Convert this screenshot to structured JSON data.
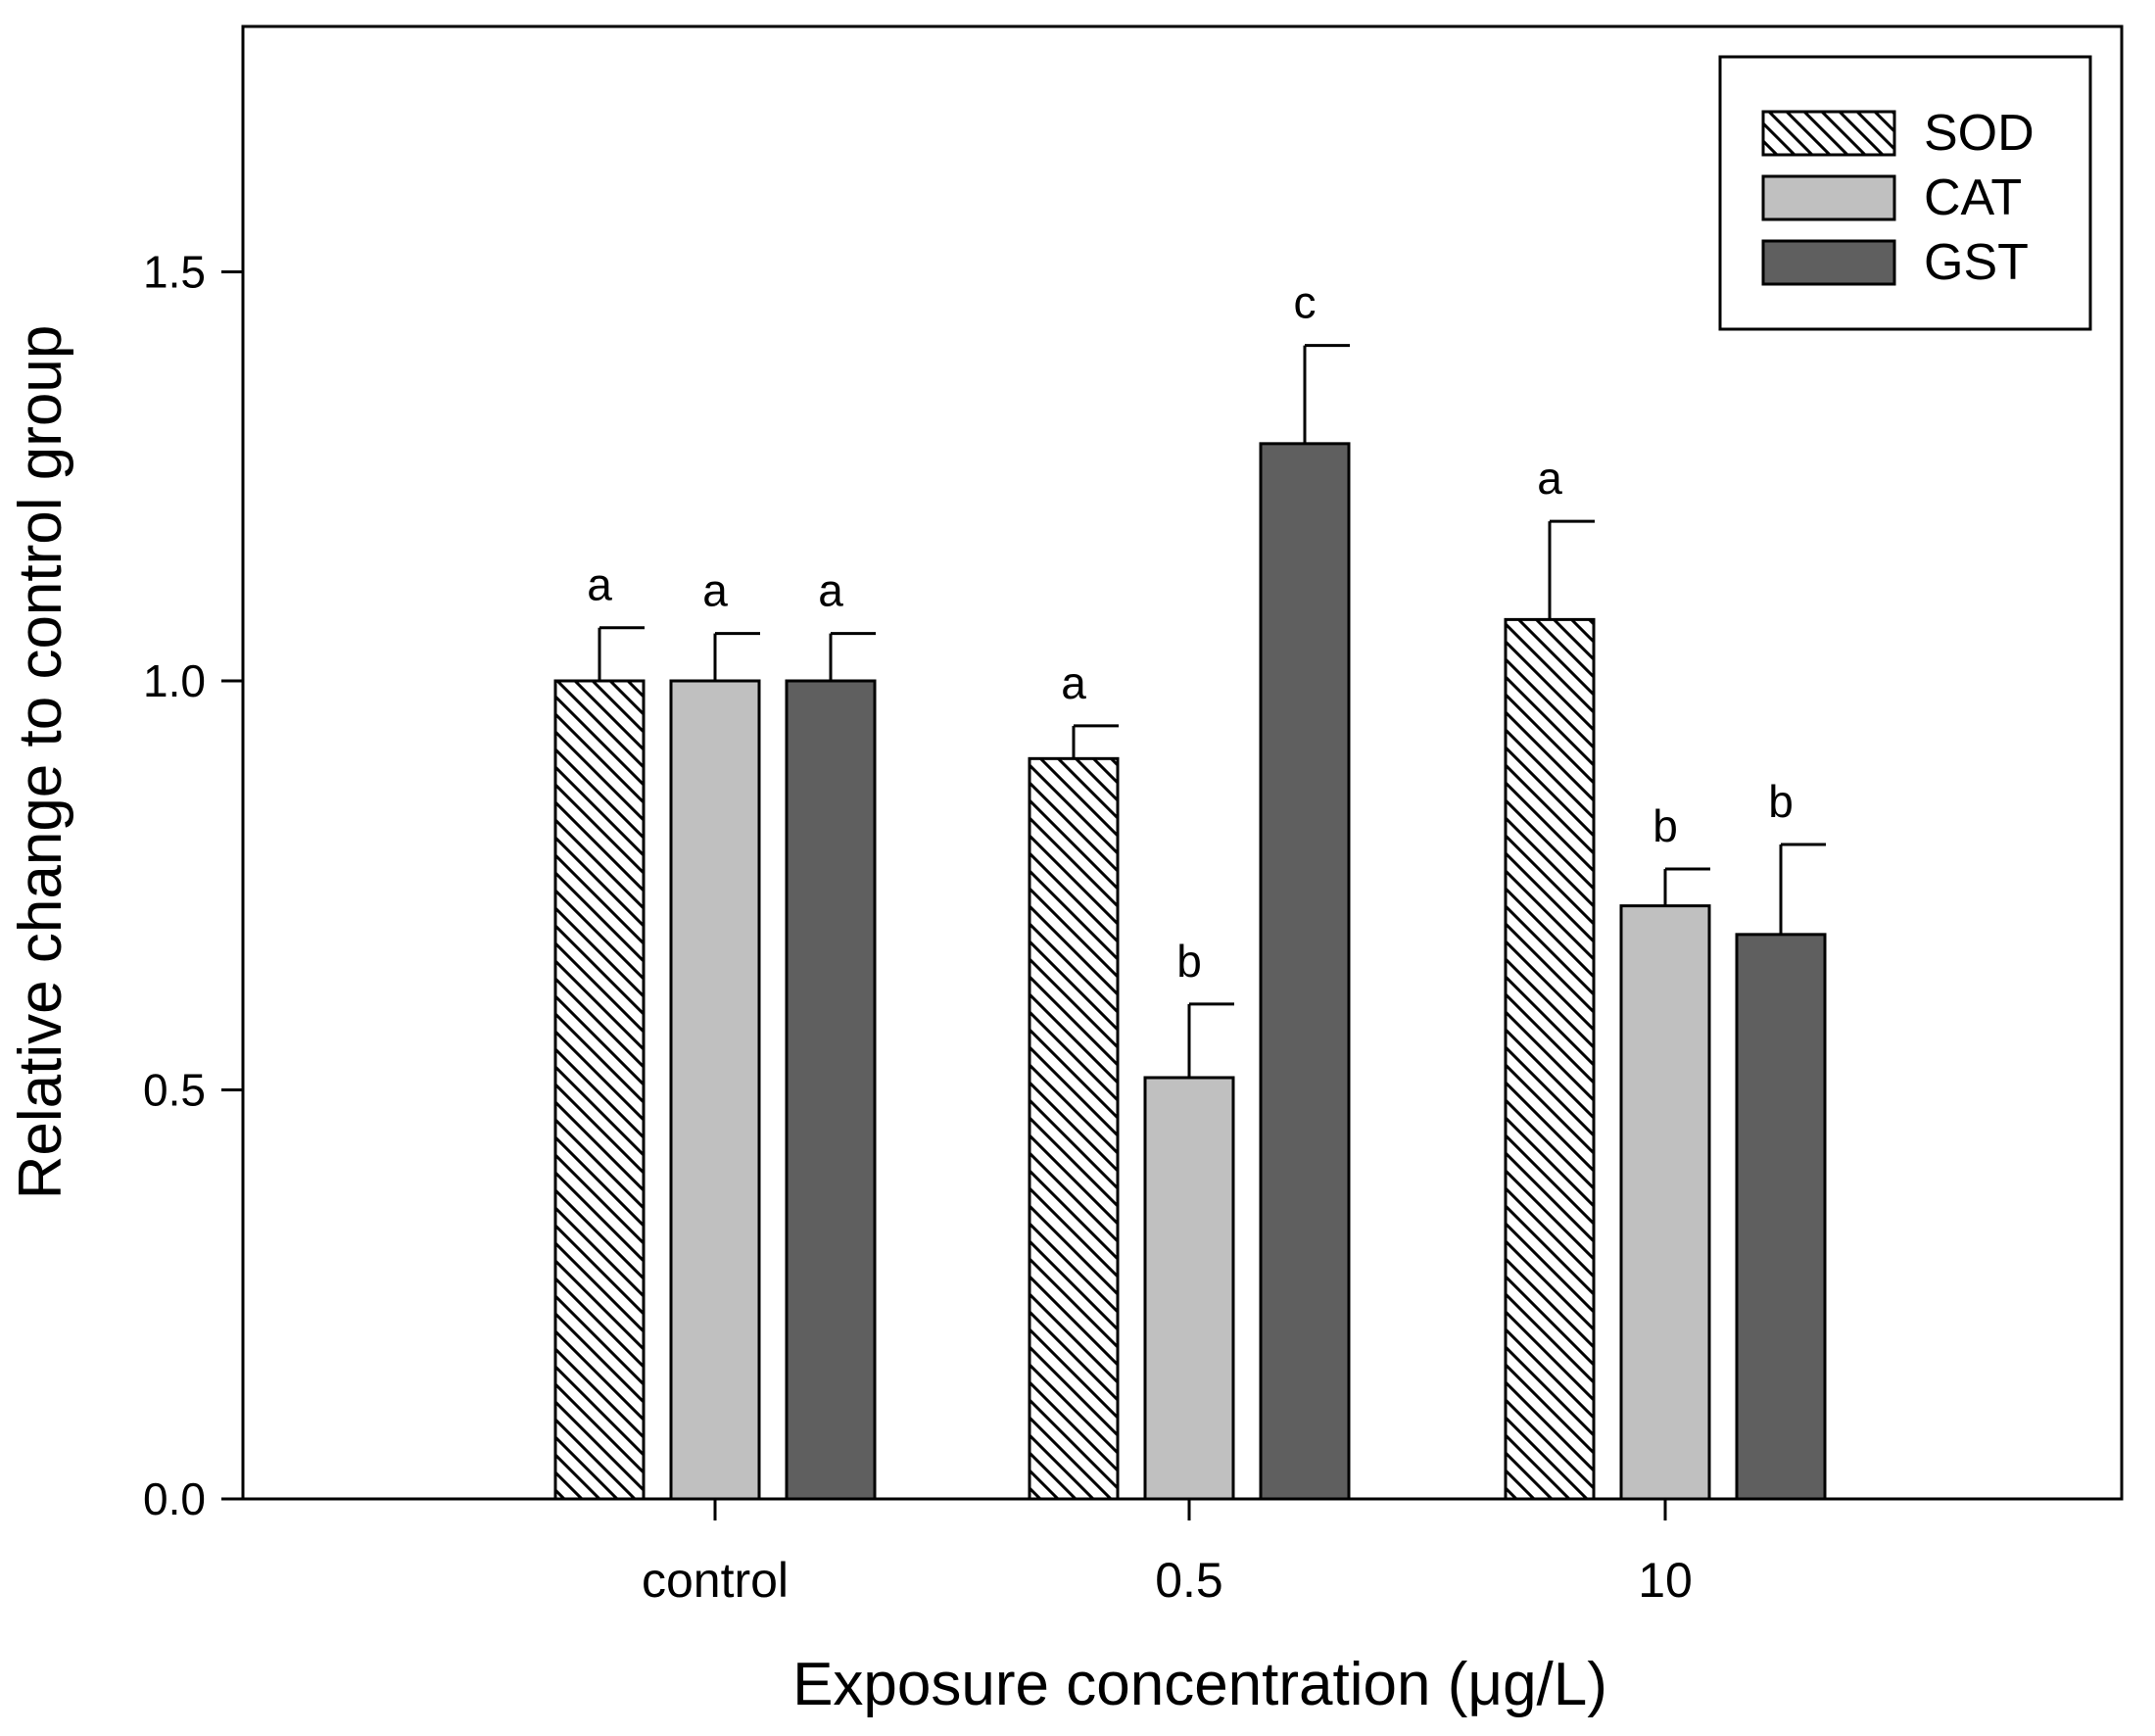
{
  "chart_data": {
    "type": "bar",
    "title": "",
    "xlabel": "Exposure concentration (μg/L)",
    "ylabel": "Relative change to control group",
    "categories": [
      "control",
      "0.5",
      "10"
    ],
    "ylim": [
      0,
      1.8
    ],
    "yticks": [
      0.0,
      0.5,
      1.0,
      1.5
    ],
    "ytick_labels": [
      "0.0",
      "0.5",
      "1.0",
      "1.5"
    ],
    "grid": false,
    "legend_position": "top-right",
    "series": [
      {
        "name": "SOD",
        "fill": "hatch",
        "color": "#ffffff",
        "values": [
          1.0,
          0.905,
          1.075
        ],
        "errors": [
          0.065,
          0.04,
          0.12
        ],
        "labels": [
          "a",
          "a",
          "a"
        ]
      },
      {
        "name": "CAT",
        "fill": "solid",
        "color": "#c0c0c0",
        "values": [
          1.0,
          0.515,
          0.725
        ],
        "errors": [
          0.058,
          0.09,
          0.045
        ],
        "labels": [
          "a",
          "b",
          "b"
        ]
      },
      {
        "name": "GST",
        "fill": "solid",
        "color": "#5f5f5f",
        "values": [
          1.0,
          1.29,
          0.69
        ],
        "errors": [
          0.058,
          0.12,
          0.11
        ],
        "labels": [
          "a",
          "c",
          "b"
        ]
      }
    ]
  }
}
